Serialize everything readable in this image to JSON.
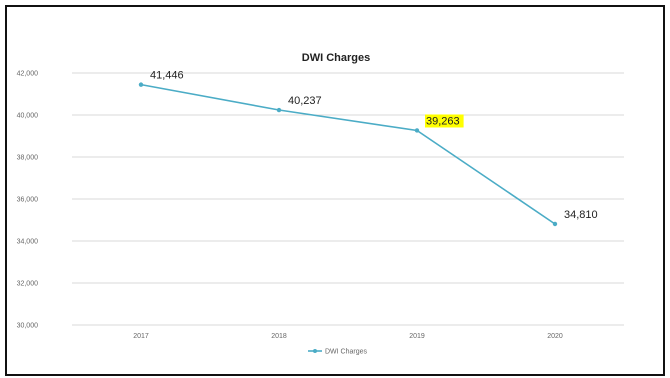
{
  "chart_data": {
    "type": "line",
    "title": "DWI Charges",
    "xlabel": "",
    "ylabel": "",
    "categories": [
      "2017",
      "2018",
      "2019",
      "2020"
    ],
    "series": [
      {
        "name": "DWI Charges",
        "values": [
          41446,
          40237,
          39263,
          34810
        ],
        "data_labels": [
          "41,446",
          "40,237",
          "39,263",
          "34,810"
        ]
      }
    ],
    "ylim": [
      30000,
      42000
    ],
    "yticks": [
      "30,000",
      "32,000",
      "34,000",
      "36,000",
      "38,000",
      "40,000",
      "42,000"
    ],
    "grid": true,
    "legend": "bottom",
    "highlighted_label_index": 2,
    "colors": {
      "line": "#4bacc6",
      "grid": "#d9d9d9",
      "highlight": "#ffff00",
      "frame": "#111111"
    }
  }
}
